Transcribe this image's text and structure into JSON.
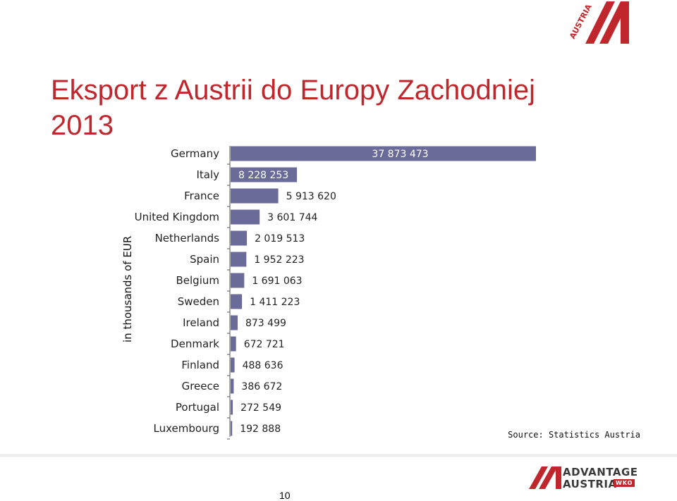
{
  "title_line1": "Eksport z Austrii do Europy Zachodniej",
  "title_line2": "2013",
  "source": "Source: Statistics Austria",
  "page_number": "10",
  "logo_top_text": "AUSTRIA",
  "logo_footer": {
    "line1": "ADVANTAGE",
    "line2": "AUSTRIA",
    "badge": "WKO"
  },
  "colors": {
    "bar": "#6b6b9a",
    "title": "#c0272d",
    "logo": "#c0272d"
  },
  "chart_data": {
    "type": "bar",
    "orientation": "horizontal",
    "ylabel": "in thousands of EUR",
    "categories": [
      "Germany",
      "Italy",
      "France",
      "United Kingdom",
      "Netherlands",
      "Spain",
      "Belgium",
      "Sweden",
      "Ireland",
      "Denmark",
      "Finland",
      "Greece",
      "Portugal",
      "Luxembourg"
    ],
    "values": [
      37873473,
      8228253,
      5913620,
      3601744,
      2019513,
      1952223,
      1691063,
      1411223,
      873499,
      672721,
      488636,
      386672,
      272549,
      192888
    ],
    "value_labels": [
      "37 873 473",
      "8 228 253",
      "5 913 620",
      "3 601 744",
      "2 019 513",
      "1 952 223",
      "1 691 063",
      "1 411 223",
      "873 499",
      "672 721",
      "488 636",
      "386 672",
      "272 549",
      "192 888"
    ],
    "xlim": [
      0,
      37873473
    ],
    "grid": false,
    "legend": "none"
  }
}
